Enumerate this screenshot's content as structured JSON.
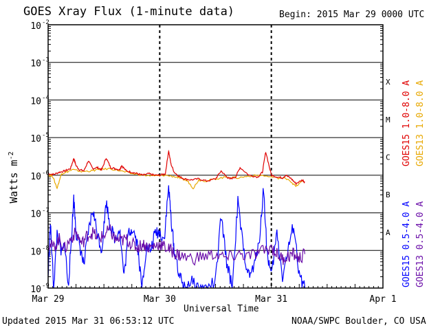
{
  "header": {
    "title": "GOES Xray Flux (1-minute data)",
    "begin": "Begin:  2015 Mar 29 0000 UTC"
  },
  "footer": {
    "updated": "Updated 2015 Mar 31 06:53:12 UTC",
    "credit": "NOAA/SWPC Boulder, CO USA"
  },
  "colors": {
    "goes15_long": "#e00000",
    "goes13_long": "#e8a800",
    "goes15_short": "#0000ff",
    "goes13_short": "#6a0da8",
    "axis": "#000000"
  },
  "chart_data": {
    "type": "line",
    "xlabel": "Universal Time",
    "ylabel": "Watts m",
    "ylabel_superscript": "-2",
    "x_ticks": [
      "Mar 29",
      "Mar 30",
      "Mar 31",
      "Apr 1"
    ],
    "x_range_days": [
      0,
      3
    ],
    "y_scale": "log",
    "y_range": [
      1e-09,
      0.01
    ],
    "y_tick_bases": [
      "10",
      "10",
      "10",
      "10",
      "10",
      "10",
      "10",
      "10"
    ],
    "y_tick_exponents": [
      "-9",
      "-8",
      "-7",
      "-6",
      "-5",
      "-4",
      "-3",
      "-2"
    ],
    "flare_classes": [
      "A",
      "B",
      "C",
      "M",
      "X"
    ],
    "legend": [
      {
        "label": "GOES15 1.0-8.0 A",
        "color": "#e00000"
      },
      {
        "label": "GOES13 1.0-8.0 A",
        "color": "#e8a800"
      },
      {
        "label": "GOES15 0.5-4.0 A",
        "color": "#0000ff"
      },
      {
        "label": "GOES13 0.5-4.0 A",
        "color": "#6a0da8"
      }
    ],
    "series": [
      {
        "name": "GOES15 1.0-8.0 A",
        "x": [
          0,
          0.05,
          0.1,
          0.15,
          0.2,
          0.23,
          0.25,
          0.28,
          0.32,
          0.36,
          0.4,
          0.44,
          0.48,
          0.52,
          0.56,
          0.6,
          0.64,
          0.66,
          0.7,
          0.75,
          0.8,
          0.85,
          0.9,
          0.95,
          1.0,
          1.05,
          1.08,
          1.1,
          1.13,
          1.18,
          1.22,
          1.28,
          1.35,
          1.42,
          1.5,
          1.55,
          1.6,
          1.63,
          1.68,
          1.72,
          1.8,
          1.88,
          1.92,
          1.95,
          2.0,
          2.05,
          2.1,
          2.13,
          2.18,
          2.22,
          2.28,
          2.3
        ],
        "y": [
          1.1e-06,
          1.05e-06,
          1.2e-06,
          1.3e-06,
          1.5e-06,
          2.8e-06,
          1.8e-06,
          1.4e-06,
          1.3e-06,
          2.4e-06,
          1.5e-06,
          1.6e-06,
          1.4e-06,
          2.9e-06,
          1.6e-06,
          1.5e-06,
          1.4e-06,
          1.8e-06,
          1.3e-06,
          1.2e-06,
          1.1e-06,
          1e-06,
          1.1e-06,
          1e-06,
          1e-06,
          1.1e-06,
          4.5e-06,
          2e-06,
          1.2e-06,
          9e-07,
          8e-07,
          7.5e-07,
          8e-07,
          7e-07,
          8e-07,
          1.3e-06,
          9e-07,
          8e-07,
          9e-07,
          1.6e-06,
          1e-06,
          9e-07,
          1.2e-06,
          4.2e-06,
          1e-06,
          9e-07,
          8.5e-07,
          1e-06,
          8e-07,
          6e-07,
          7.5e-07,
          6.5e-07
        ],
        "color": "#e00000"
      },
      {
        "name": "GOES13 1.0-8.0 A",
        "x": [
          0,
          0.04,
          0.08,
          0.12,
          0.16,
          0.22,
          0.3,
          0.38,
          0.45,
          0.55,
          0.65,
          0.75,
          0.85,
          0.95,
          1.05,
          1.15,
          1.2,
          1.25,
          1.3,
          1.35,
          1.42,
          1.5,
          1.6,
          1.7,
          1.8,
          1.9,
          2.05,
          2.15,
          2.22,
          2.28
        ],
        "y": [
          1e-06,
          9.5e-07,
          4.5e-07,
          1.1e-06,
          1.2e-06,
          1.4e-06,
          1.25e-06,
          1.3e-06,
          1.4e-06,
          1.5e-06,
          1.3e-06,
          1.1e-06,
          1e-06,
          9.5e-07,
          1e-06,
          9e-07,
          8e-07,
          7e-07,
          4.5e-07,
          7.5e-07,
          7e-07,
          8e-07,
          9e-07,
          8.5e-07,
          9.5e-07,
          1e-06,
          8.5e-07,
          8e-07,
          5e-07,
          7e-07
        ],
        "color": "#e8a800"
      },
      {
        "name": "GOES15 0.5-4.0 A",
        "x": [
          0,
          0.02,
          0.05,
          0.08,
          0.12,
          0.15,
          0.18,
          0.2,
          0.23,
          0.25,
          0.28,
          0.32,
          0.36,
          0.4,
          0.44,
          0.48,
          0.52,
          0.56,
          0.6,
          0.64,
          0.68,
          0.72,
          0.76,
          0.8,
          0.84,
          0.88,
          0.92,
          0.96,
          1.0,
          1.04,
          1.08,
          1.1,
          1.13,
          1.18,
          1.22,
          1.28,
          1.35,
          1.42,
          1.5,
          1.55,
          1.6,
          1.65,
          1.7,
          1.75,
          1.8,
          1.85,
          1.9,
          1.93,
          1.96,
          2.0,
          2.05,
          2.1,
          2.15,
          2.2,
          2.25,
          2.3
        ],
        "y": [
          2e-09,
          5e-08,
          1e-09,
          3e-08,
          8e-09,
          1.5e-08,
          1e-09,
          8e-09,
          2.5e-07,
          3e-08,
          1.5e-08,
          4e-09,
          3e-08,
          1.2e-07,
          3e-08,
          1e-08,
          2e-07,
          4e-08,
          2e-08,
          4e-08,
          2e-09,
          3e-08,
          4e-08,
          1.5e-08,
          1e-09,
          1.2e-08,
          1e-08,
          3e-08,
          3e-08,
          2e-08,
          5e-07,
          8e-08,
          1e-08,
          2e-09,
          1e-09,
          1.5e-09,
          1e-09,
          1e-09,
          1.5e-09,
          8e-08,
          5e-09,
          1e-09,
          2e-07,
          1e-08,
          2e-09,
          4e-09,
          3e-08,
          5e-07,
          1e-08,
          2e-09,
          3e-08,
          2e-09,
          1e-08,
          5e-08,
          2e-09,
          1e-09
        ],
        "color": "#0000ff"
      },
      {
        "name": "GOES13 0.5-4.0 A",
        "x": [
          0,
          0.05,
          0.1,
          0.15,
          0.2,
          0.25,
          0.3,
          0.35,
          0.4,
          0.45,
          0.5,
          0.55,
          0.6,
          0.65,
          0.7,
          0.75,
          0.8,
          0.85,
          0.9,
          0.95,
          1.0,
          1.05,
          1.1,
          1.15,
          1.2,
          1.3,
          1.4,
          1.5,
          1.6,
          1.7,
          1.8,
          1.9,
          2.0,
          2.05,
          2.1,
          2.15,
          2.2,
          2.25,
          2.3
        ],
        "y": [
          1.5e-08,
          1.2e-08,
          2e-08,
          1.1e-08,
          2e-08,
          3e-08,
          1.5e-08,
          2.5e-08,
          3e-08,
          2e-08,
          2.5e-08,
          3.5e-08,
          2e-08,
          1.8e-08,
          2e-08,
          1.5e-08,
          1.2e-08,
          1.5e-08,
          1.2e-08,
          1.3e-08,
          1.5e-08,
          1.2e-08,
          1e-08,
          8e-09,
          7e-09,
          6e-09,
          7e-09,
          8e-09,
          6e-09,
          8e-09,
          7e-09,
          9e-09,
          1.2e-08,
          8e-09,
          6e-09,
          7e-09,
          8e-09,
          6e-09,
          8e-09
        ],
        "color": "#6a0da8"
      }
    ]
  }
}
